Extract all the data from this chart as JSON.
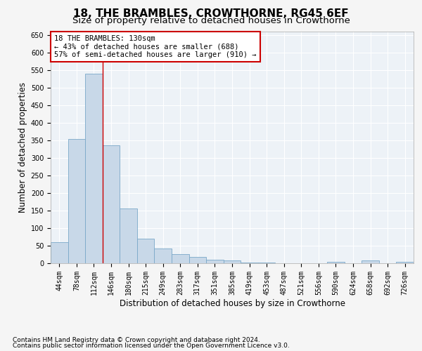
{
  "title": "18, THE BRAMBLES, CROWTHORNE, RG45 6EF",
  "subtitle": "Size of property relative to detached houses in Crowthorne",
  "xlabel": "Distribution of detached houses by size in Crowthorne",
  "ylabel": "Number of detached properties",
  "categories": [
    "44sqm",
    "78sqm",
    "112sqm",
    "146sqm",
    "180sqm",
    "215sqm",
    "249sqm",
    "283sqm",
    "317sqm",
    "351sqm",
    "385sqm",
    "419sqm",
    "453sqm",
    "487sqm",
    "521sqm",
    "556sqm",
    "590sqm",
    "624sqm",
    "658sqm",
    "692sqm",
    "726sqm"
  ],
  "values": [
    60,
    355,
    540,
    337,
    157,
    70,
    43,
    26,
    18,
    10,
    8,
    2,
    2,
    1,
    0,
    0,
    5,
    0,
    8,
    0,
    5
  ],
  "bar_color": "#c8d8e8",
  "bar_edge_color": "#7aa8c8",
  "bar_edge_width": 0.6,
  "property_line_x": 2.5,
  "property_line_color": "#cc0000",
  "ylim": [
    0,
    660
  ],
  "yticks": [
    0,
    50,
    100,
    150,
    200,
    250,
    300,
    350,
    400,
    450,
    500,
    550,
    600,
    650
  ],
  "annotation_text": "18 THE BRAMBLES: 130sqm\n← 43% of detached houses are smaller (688)\n57% of semi-detached houses are larger (910) →",
  "annotation_box_color": "#ffffff",
  "annotation_box_edge_color": "#cc0000",
  "footnote1": "Contains HM Land Registry data © Crown copyright and database right 2024.",
  "footnote2": "Contains public sector information licensed under the Open Government Licence v3.0.",
  "background_color": "#edf2f7",
  "grid_color": "#ffffff",
  "title_fontsize": 11,
  "subtitle_fontsize": 9.5,
  "axis_label_fontsize": 8.5,
  "tick_fontsize": 7,
  "annotation_fontsize": 7.5,
  "footnote_fontsize": 6.5
}
